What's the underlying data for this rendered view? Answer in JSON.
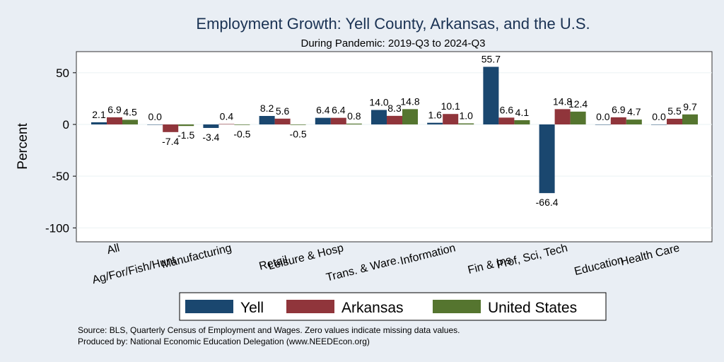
{
  "chart_data": {
    "type": "bar",
    "title": "Employment Growth: Yell County, Arkansas, and the U.S.",
    "subtitle": "During Pandemic: 2019-Q3 to 2024-Q3",
    "xlabel": "",
    "ylabel": "Percent",
    "ylim": [
      -110,
      70
    ],
    "yticks": [
      50,
      0,
      -50,
      -100
    ],
    "yticks_labels": [
      "50",
      "0",
      "-50",
      "-100"
    ],
    "grid": true,
    "legend_position": "bottom",
    "categories": [
      "All",
      "Ag/For/Fish/Hunt",
      "Manufacturing",
      "Retail",
      "Leisure & Hosp",
      "Trans. & Ware.",
      "Information",
      "Fin & Ins",
      "Prof, Sci, Tech",
      "Education",
      "Health Care"
    ],
    "series": [
      {
        "name": "Yell",
        "color": "#1a476f",
        "values": [
          2.1,
          0.0,
          -3.4,
          8.2,
          6.4,
          14.0,
          1.6,
          55.7,
          -66.4,
          0.0,
          0.0
        ],
        "labels": [
          "2.1",
          "0.0",
          "-3.4",
          "8.2",
          "6.4",
          "14.0",
          "1.6",
          "55.7",
          "-66.4",
          "0.0",
          "0.0"
        ]
      },
      {
        "name": "Arkansas",
        "color": "#90353b",
        "values": [
          6.9,
          -7.4,
          0.4,
          5.6,
          6.4,
          8.3,
          10.1,
          6.6,
          14.8,
          6.9,
          5.5
        ],
        "labels": [
          "6.9",
          "-7.4",
          "0.4",
          "5.6",
          "6.4",
          "8.3",
          "10.1",
          "6.6",
          "14.8",
          "6.9",
          "5.5"
        ]
      },
      {
        "name": "United States",
        "color": "#55752f",
        "values": [
          4.5,
          -1.5,
          -0.5,
          -0.5,
          0.8,
          14.8,
          1.0,
          4.1,
          12.4,
          4.7,
          9.7
        ],
        "labels": [
          "4.5",
          "-1.5",
          "-0.5",
          "-0.5",
          "0.8",
          "14.8",
          "1.0",
          "4.1",
          "12.4",
          "4.7",
          "9.7"
        ]
      }
    ],
    "notes": [
      "Source: BLS, Quarterly Census of Employment and Wages. Zero values indicate missing data values.",
      "Produced by: National Economic Education Delegation (www.NEEDEcon.org)"
    ]
  }
}
